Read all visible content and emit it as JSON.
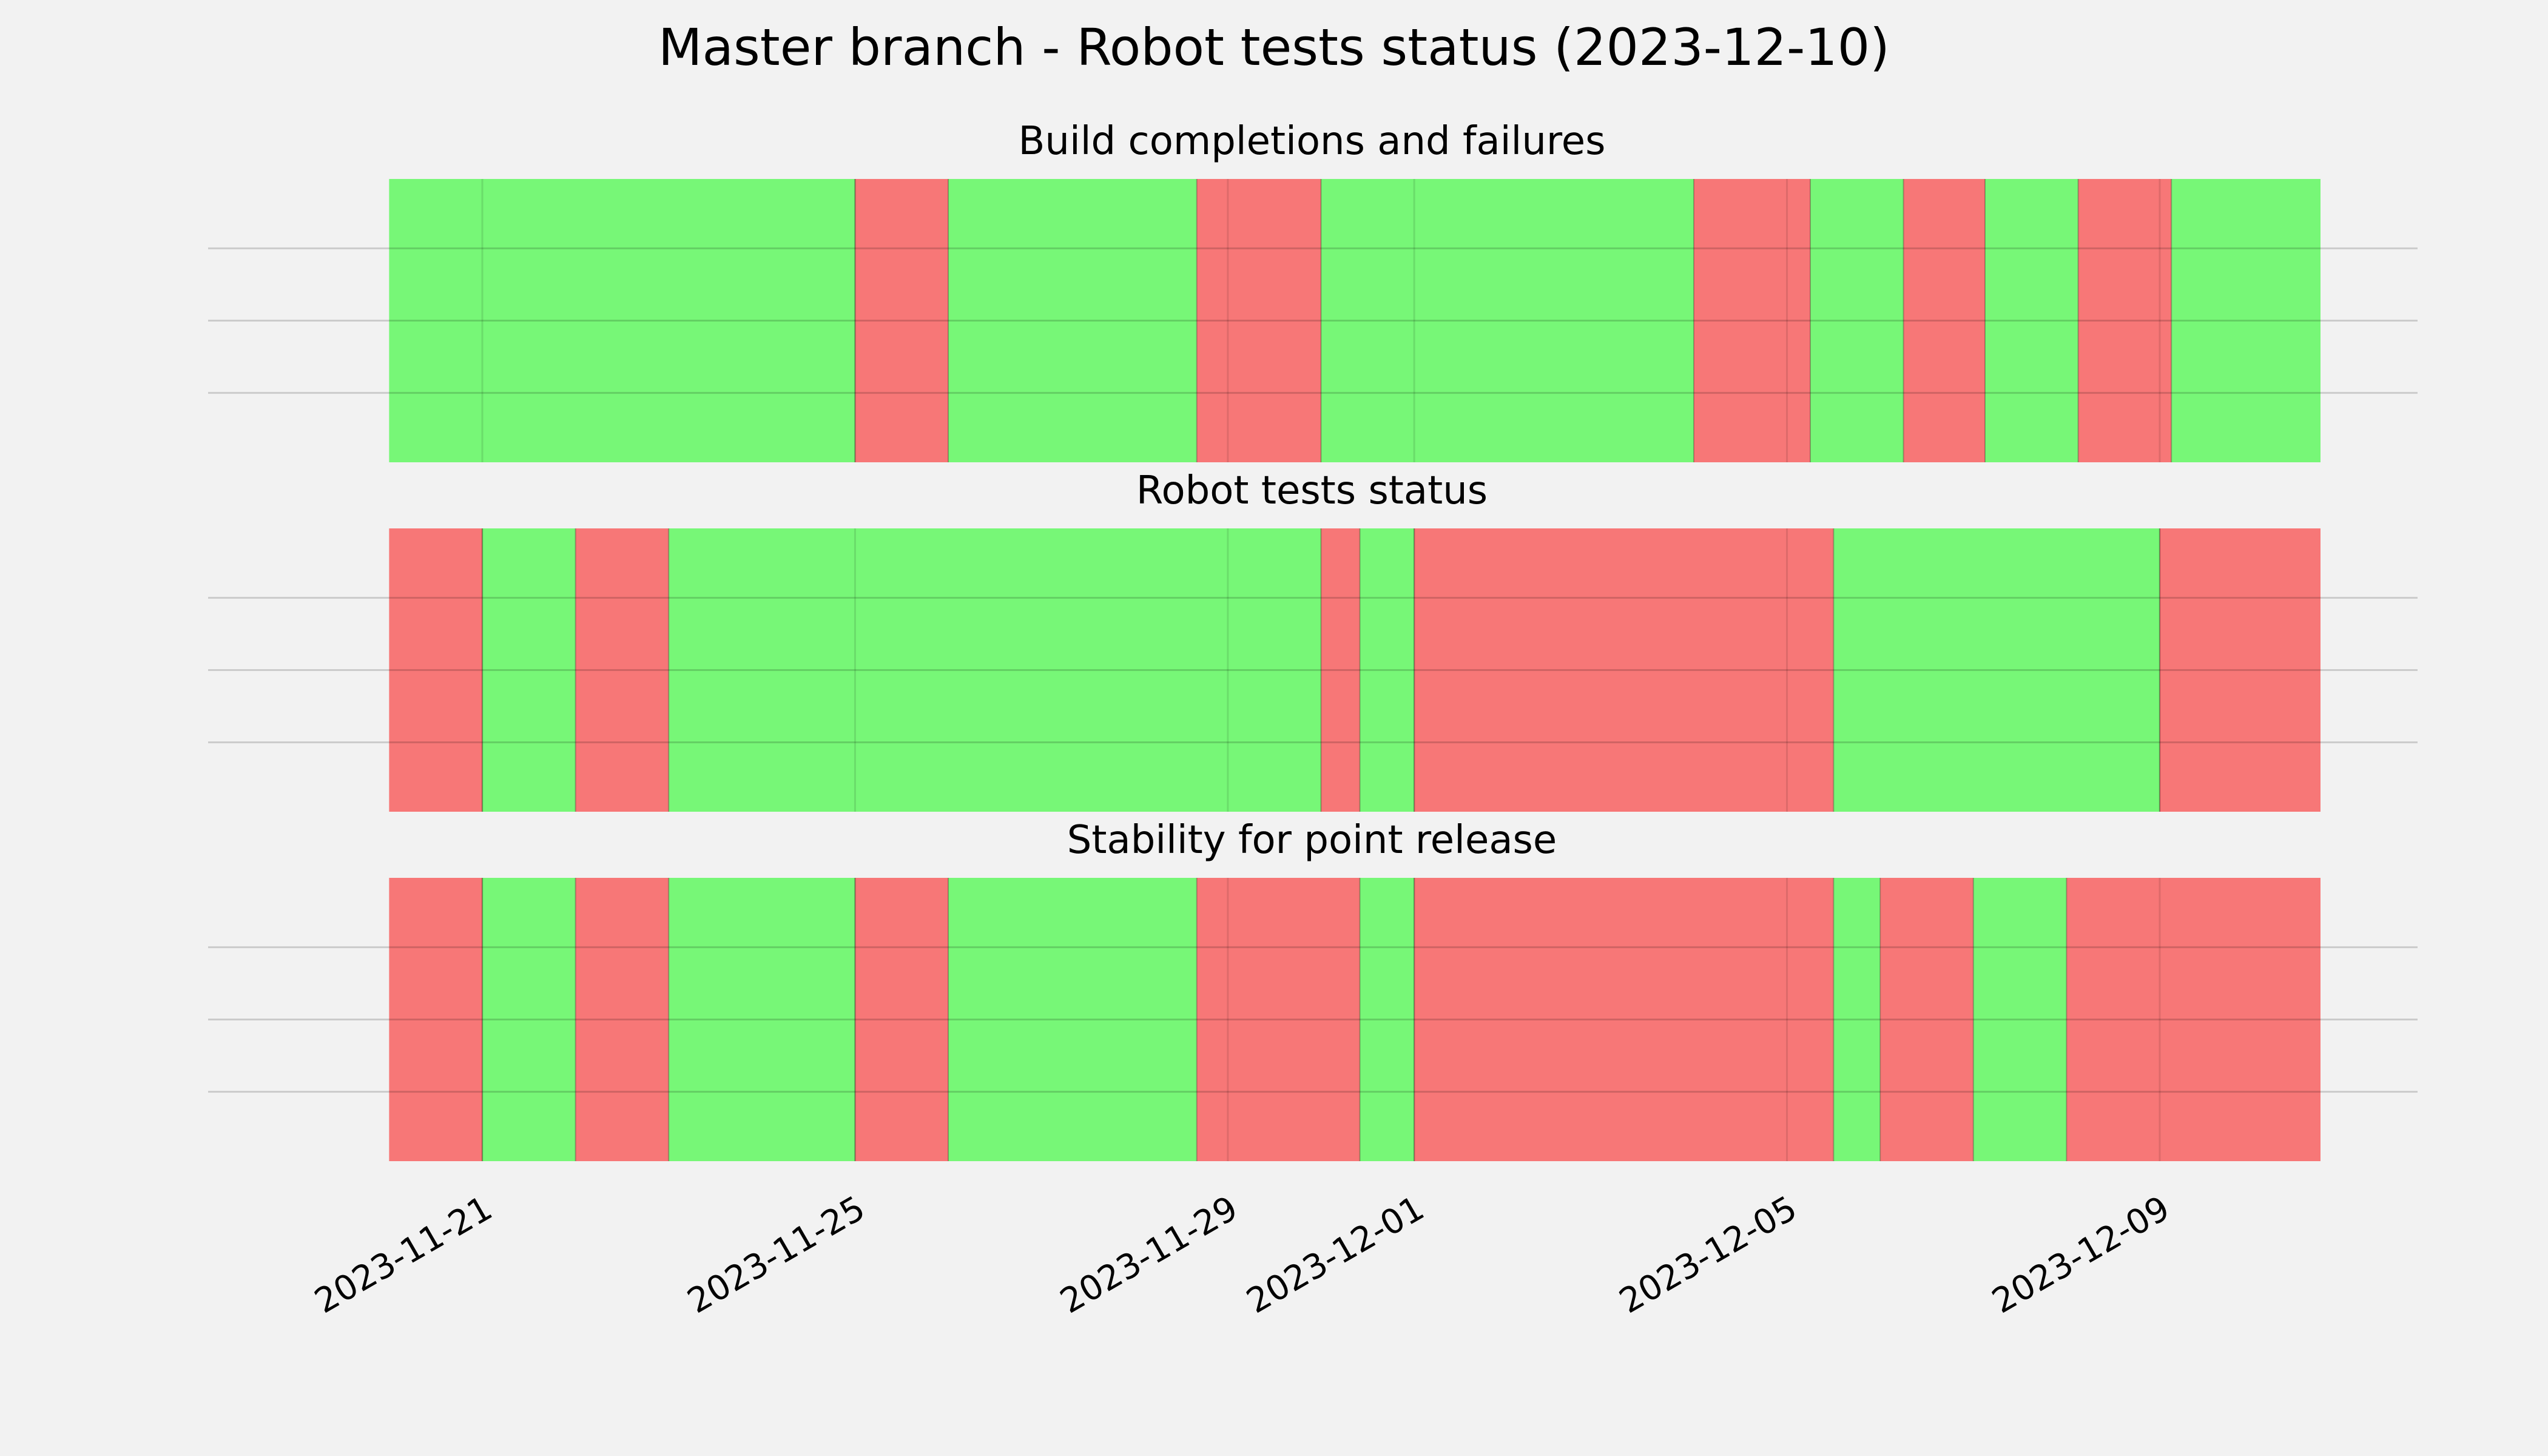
{
  "chart_data": {
    "type": "timeline",
    "title": "Master branch - Robot tests status (2023-12-10)",
    "x_range": [
      "2023-11-20",
      "2023-12-10"
    ],
    "x_ticks": [
      "2023-11-21",
      "2023-11-25",
      "2023-11-29",
      "2023-12-01",
      "2023-12-05",
      "2023-12-09"
    ],
    "grid": true,
    "colors": {
      "pass": "#77f777",
      "fail": "#f77777"
    },
    "panels": [
      {
        "title": "Build completions and failures",
        "segments": [
          {
            "start": "2023-11-20T00:00",
            "end": "2023-11-25T00:00",
            "status": "pass"
          },
          {
            "start": "2023-11-25T00:00",
            "end": "2023-11-26T00:00",
            "status": "fail"
          },
          {
            "start": "2023-11-26T00:00",
            "end": "2023-11-28T16:00",
            "status": "pass"
          },
          {
            "start": "2023-11-28T16:00",
            "end": "2023-11-30T00:00",
            "status": "fail"
          },
          {
            "start": "2023-11-30T00:00",
            "end": "2023-12-04T00:00",
            "status": "pass"
          },
          {
            "start": "2023-12-04T00:00",
            "end": "2023-12-05T06:00",
            "status": "fail"
          },
          {
            "start": "2023-12-05T06:00",
            "end": "2023-12-06T06:00",
            "status": "pass"
          },
          {
            "start": "2023-12-06T06:00",
            "end": "2023-12-07T03:00",
            "status": "fail"
          },
          {
            "start": "2023-12-07T03:00",
            "end": "2023-12-08T03:00",
            "status": "pass"
          },
          {
            "start": "2023-12-08T03:00",
            "end": "2023-12-09T03:00",
            "status": "fail"
          },
          {
            "start": "2023-12-09T03:00",
            "end": "2023-12-11T16:00",
            "status": "pass"
          }
        ]
      },
      {
        "title": "Robot tests status",
        "segments": [
          {
            "start": "2023-11-20T00:00",
            "end": "2023-11-21T00:00",
            "status": "fail"
          },
          {
            "start": "2023-11-21T00:00",
            "end": "2023-11-22T00:00",
            "status": "pass"
          },
          {
            "start": "2023-11-22T00:00",
            "end": "2023-11-23T00:00",
            "status": "fail"
          },
          {
            "start": "2023-11-23T00:00",
            "end": "2023-11-30T00:00",
            "status": "pass"
          },
          {
            "start": "2023-11-30T00:00",
            "end": "2023-11-30T10:00",
            "status": "fail"
          },
          {
            "start": "2023-11-30T10:00",
            "end": "2023-12-01T00:00",
            "status": "pass"
          },
          {
            "start": "2023-12-01T00:00",
            "end": "2023-12-05T12:00",
            "status": "fail"
          },
          {
            "start": "2023-12-05T12:00",
            "end": "2023-12-09T00:00",
            "status": "pass"
          },
          {
            "start": "2023-12-09T00:00",
            "end": "2023-12-11T16:00",
            "status": "fail"
          }
        ]
      },
      {
        "title": "Stability for point release",
        "segments": [
          {
            "start": "2023-11-20T00:00",
            "end": "2023-11-21T00:00",
            "status": "fail"
          },
          {
            "start": "2023-11-21T00:00",
            "end": "2023-11-22T00:00",
            "status": "pass"
          },
          {
            "start": "2023-11-22T00:00",
            "end": "2023-11-23T00:00",
            "status": "fail"
          },
          {
            "start": "2023-11-23T00:00",
            "end": "2023-11-25T00:00",
            "status": "pass"
          },
          {
            "start": "2023-11-25T00:00",
            "end": "2023-11-26T00:00",
            "status": "fail"
          },
          {
            "start": "2023-11-26T00:00",
            "end": "2023-11-28T16:00",
            "status": "pass"
          },
          {
            "start": "2023-11-28T16:00",
            "end": "2023-11-30T10:00",
            "status": "fail"
          },
          {
            "start": "2023-11-30T10:00",
            "end": "2023-12-01T00:00",
            "status": "pass"
          },
          {
            "start": "2023-12-01T00:00",
            "end": "2023-12-05T12:00",
            "status": "fail"
          },
          {
            "start": "2023-12-05T12:00",
            "end": "2023-12-06T00:00",
            "status": "pass"
          },
          {
            "start": "2023-12-06T00:00",
            "end": "2023-12-07T00:00",
            "status": "fail"
          },
          {
            "start": "2023-12-07T00:00",
            "end": "2023-12-08T00:00",
            "status": "pass"
          },
          {
            "start": "2023-12-08T00:00",
            "end": "2023-12-11T16:00",
            "status": "fail"
          }
        ]
      }
    ]
  }
}
